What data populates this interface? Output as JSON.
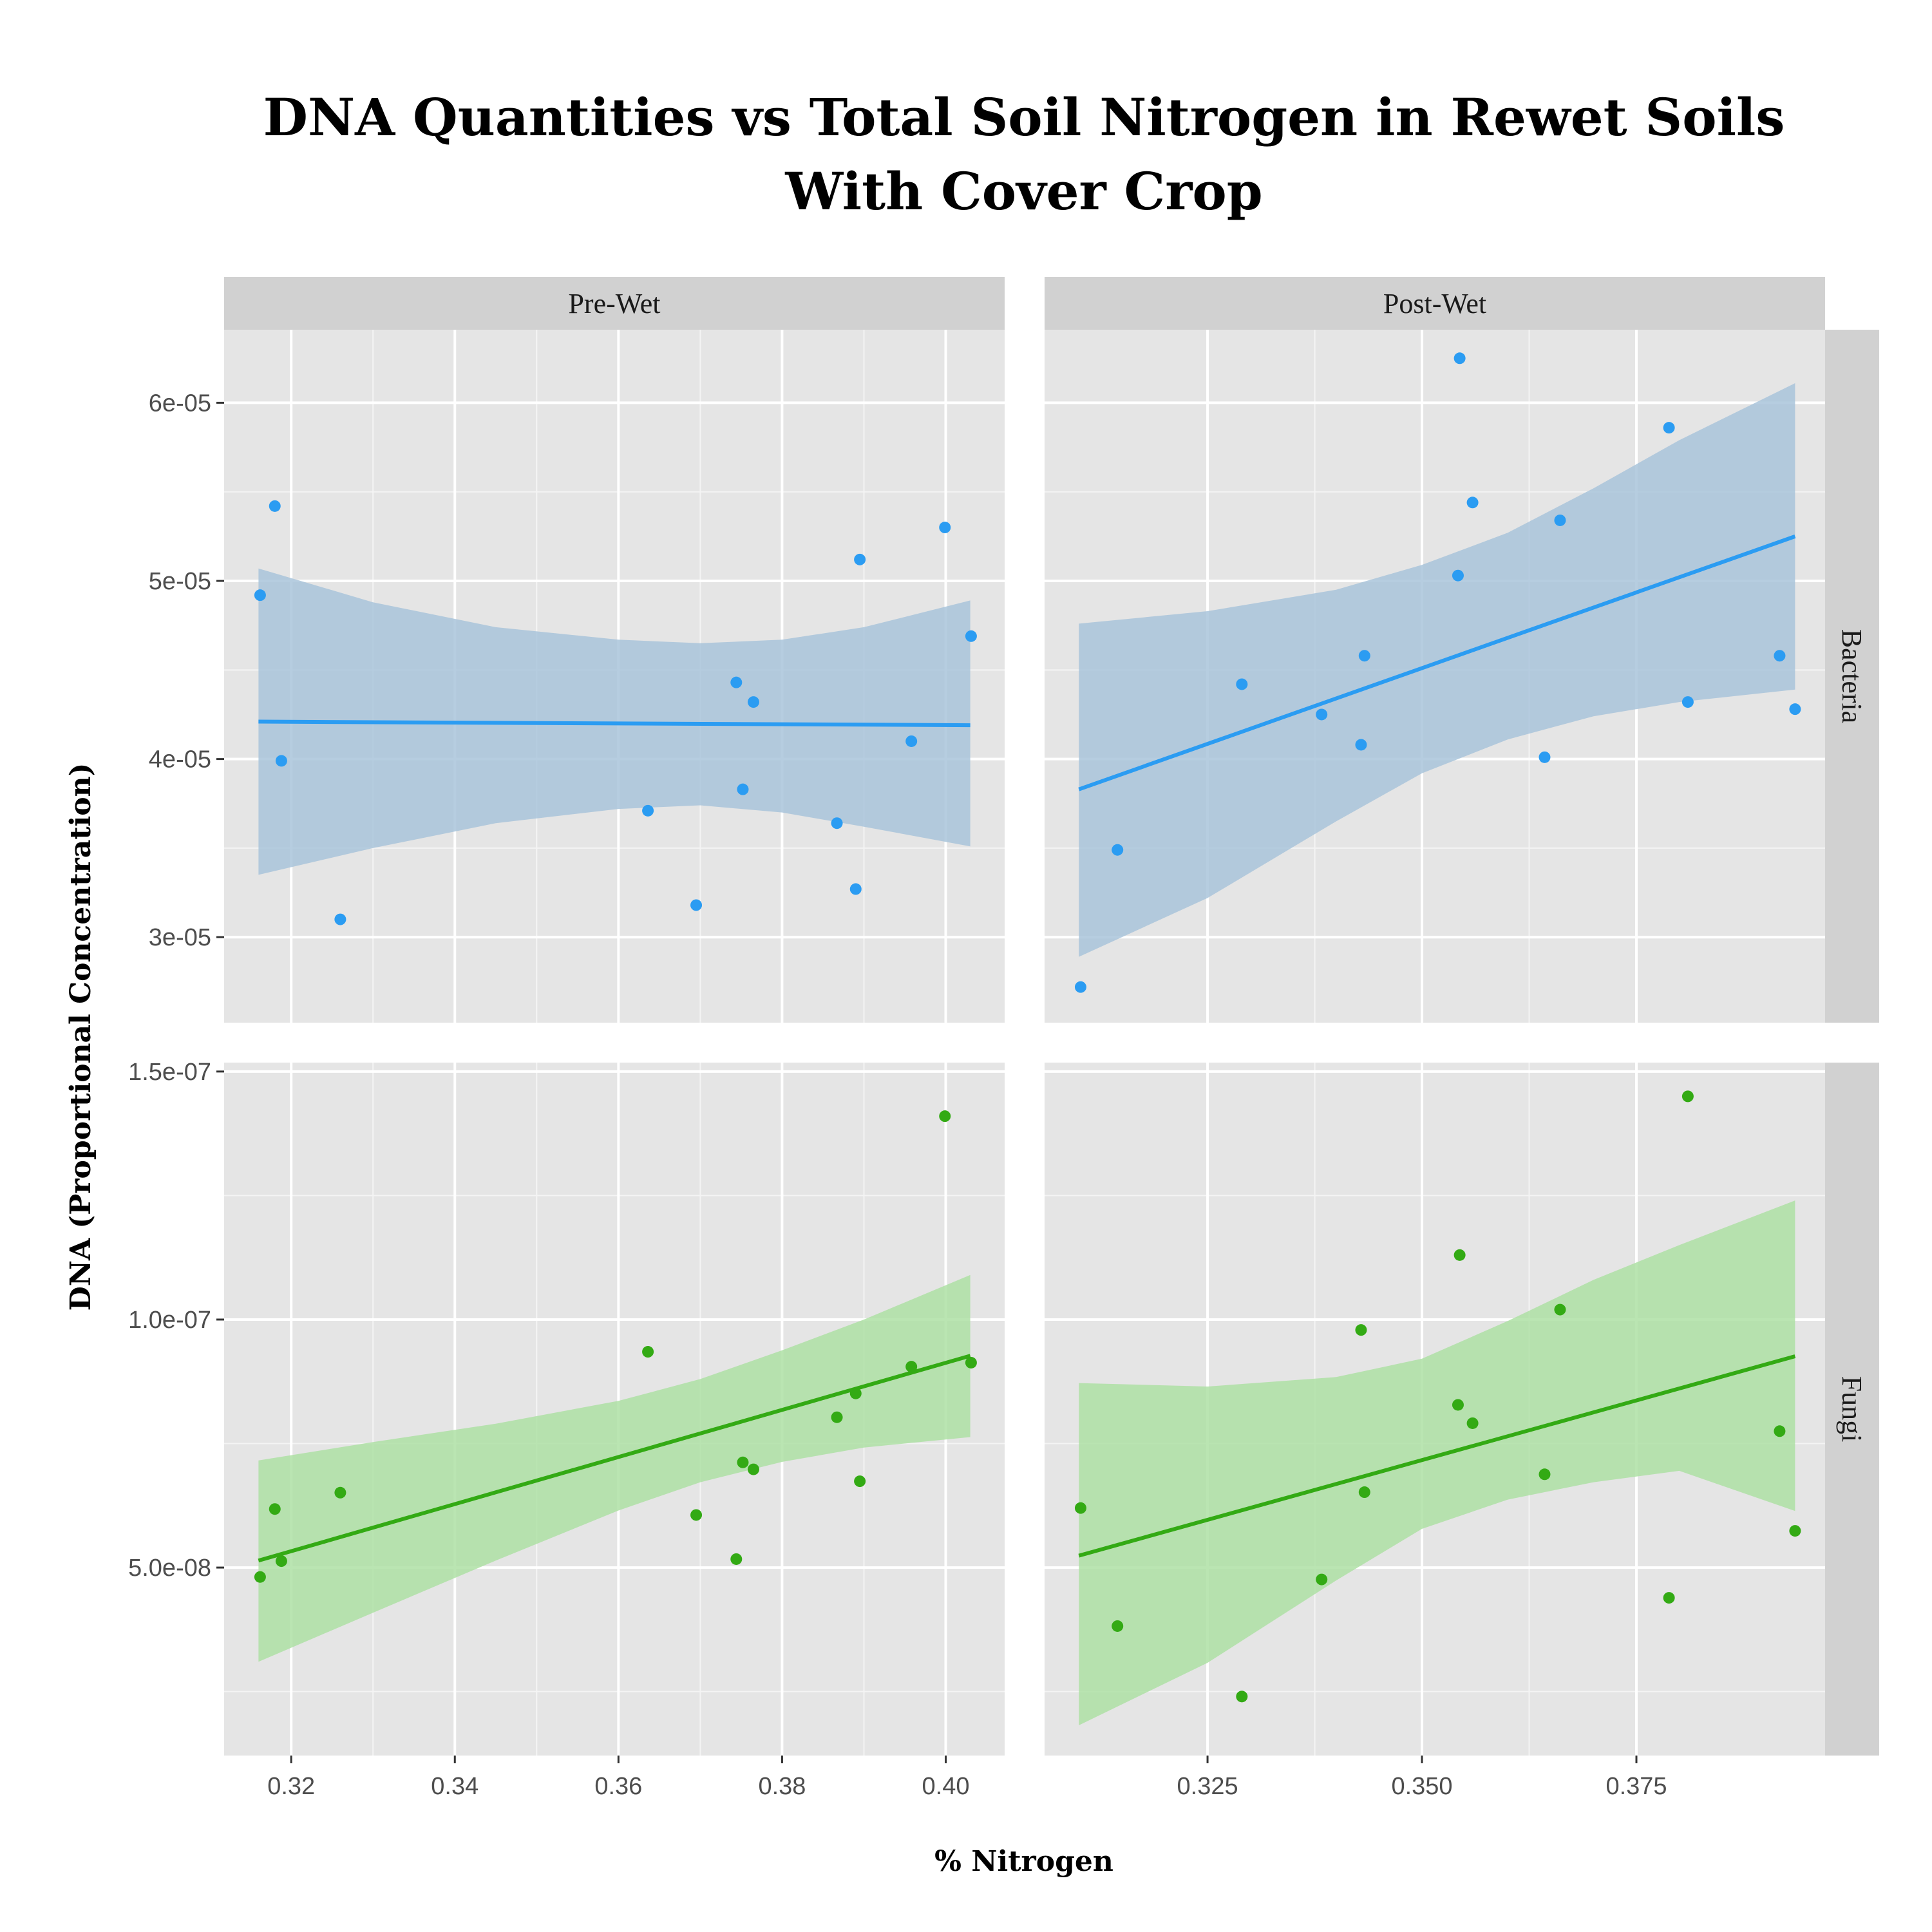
{
  "chart_data": {
    "type": "scatter",
    "title_lines": [
      "DNA Quantities vs Total Soil Nitrogen in Rewet Soils",
      "With Cover Crop"
    ],
    "xlabel": "% Nitrogen",
    "ylabel": "DNA (Proportional Concentration)",
    "columns": [
      {
        "label": "Pre-Wet",
        "xlim": [
          0.3118,
          0.4072
        ],
        "ticks": [
          0.32,
          0.34,
          0.36,
          0.38,
          0.4
        ],
        "tick_labels": [
          "0.32",
          "0.34",
          "0.36",
          "0.38",
          "0.40"
        ]
      },
      {
        "label": "Post-Wet",
        "xlim": [
          0.306,
          0.397
        ],
        "ticks": [
          0.325,
          0.35,
          0.375
        ],
        "tick_labels": [
          "0.325",
          "0.350",
          "0.375"
        ]
      }
    ],
    "rows": [
      {
        "label": "Bacteria",
        "color": "#2b9cf2",
        "band_color": "#a9c4da",
        "ylim": [
          2.52e-05,
          6.41e-05
        ],
        "ticks": [
          3e-05,
          4e-05,
          5e-05,
          6e-05
        ],
        "tick_labels": [
          "3e-05",
          "4e-05",
          "5e-05",
          "6e-05"
        ]
      },
      {
        "label": "Fungi",
        "color": "#33aa14",
        "band_color": "#aee0a4",
        "ylim": [
          1.21e-08,
          1.518e-07
        ],
        "ticks": [
          5e-08,
          1e-07,
          1.5e-07
        ],
        "tick_labels": [
          "5.0e-08",
          "1.0e-07",
          "1.5e-07"
        ]
      }
    ],
    "panels": [
      {
        "column": "Pre-Wet",
        "row": "Bacteria",
        "points": [
          [
            0.3162,
            4.92e-05
          ],
          [
            0.318,
            5.42e-05
          ],
          [
            0.3188,
            3.99e-05
          ],
          [
            0.326,
            3.1e-05
          ],
          [
            0.3636,
            3.71e-05
          ],
          [
            0.3695,
            3.18e-05
          ],
          [
            0.3744,
            4.43e-05
          ],
          [
            0.3752,
            3.83e-05
          ],
          [
            0.3765,
            4.32e-05
          ],
          [
            0.3867,
            3.64e-05
          ],
          [
            0.389,
            3.27e-05
          ],
          [
            0.3895,
            5.12e-05
          ],
          [
            0.3958,
            4.1e-05
          ],
          [
            0.3999,
            5.3e-05
          ],
          [
            0.4031,
            4.69e-05
          ]
        ],
        "fit": [
          [
            0.316,
            4.21e-05
          ],
          [
            0.403,
            4.19e-05
          ]
        ],
        "band": [
          [
            0.316,
            3.35e-05,
            5.07e-05
          ],
          [
            0.33,
            3.5e-05,
            4.88e-05
          ],
          [
            0.345,
            3.64e-05,
            4.74e-05
          ],
          [
            0.36,
            3.72e-05,
            4.67e-05
          ],
          [
            0.37,
            3.74e-05,
            4.65e-05
          ],
          [
            0.38,
            3.7e-05,
            4.67e-05
          ],
          [
            0.39,
            3.62e-05,
            4.74e-05
          ],
          [
            0.403,
            3.51e-05,
            4.89e-05
          ]
        ]
      },
      {
        "column": "Post-Wet",
        "row": "Bacteria",
        "points": [
          [
            0.3102,
            2.72e-05
          ],
          [
            0.3145,
            3.49e-05
          ],
          [
            0.329,
            4.42e-05
          ],
          [
            0.3383,
            4.25e-05
          ],
          [
            0.3429,
            4.08e-05
          ],
          [
            0.3433,
            4.58e-05
          ],
          [
            0.3542,
            5.03e-05
          ],
          [
            0.3544,
            6.25e-05
          ],
          [
            0.3559,
            5.44e-05
          ],
          [
            0.3643,
            4.01e-05
          ],
          [
            0.3661,
            5.34e-05
          ],
          [
            0.3788,
            5.86e-05
          ],
          [
            0.381,
            4.32e-05
          ],
          [
            0.3917,
            4.58e-05
          ],
          [
            0.3935,
            4.28e-05
          ]
        ],
        "fit": [
          [
            0.31,
            3.83e-05
          ],
          [
            0.3935,
            5.25e-05
          ]
        ],
        "band": [
          [
            0.31,
            2.89e-05,
            4.76e-05
          ],
          [
            0.325,
            3.22e-05,
            4.83e-05
          ],
          [
            0.34,
            3.65e-05,
            4.95e-05
          ],
          [
            0.35,
            3.92e-05,
            5.09e-05
          ],
          [
            0.36,
            4.11e-05,
            5.27e-05
          ],
          [
            0.37,
            4.24e-05,
            5.52e-05
          ],
          [
            0.38,
            4.32e-05,
            5.79e-05
          ],
          [
            0.3935,
            4.39e-05,
            6.11e-05
          ]
        ]
      },
      {
        "column": "Pre-Wet",
        "row": "Fungi",
        "points": [
          [
            0.3162,
            4.81e-08
          ],
          [
            0.318,
            6.18e-08
          ],
          [
            0.3188,
            5.13e-08
          ],
          [
            0.326,
            6.51e-08
          ],
          [
            0.3636,
            9.35e-08
          ],
          [
            0.3695,
            6.06e-08
          ],
          [
            0.3744,
            5.17e-08
          ],
          [
            0.3752,
            7.12e-08
          ],
          [
            0.3765,
            6.98e-08
          ],
          [
            0.3867,
            8.03e-08
          ],
          [
            0.389,
            8.51e-08
          ],
          [
            0.3895,
            6.74e-08
          ],
          [
            0.3958,
            9.05e-08
          ],
          [
            0.3999,
            1.41e-07
          ],
          [
            0.4031,
            9.13e-08
          ]
        ],
        "fit": [
          [
            0.316,
            5.14e-08
          ],
          [
            0.403,
            9.27e-08
          ]
        ],
        "band": [
          [
            0.316,
            3.1e-08,
            7.16e-08
          ],
          [
            0.33,
            4.09e-08,
            7.53e-08
          ],
          [
            0.345,
            5.14e-08,
            7.9e-08
          ],
          [
            0.36,
            6.15e-08,
            8.36e-08
          ],
          [
            0.37,
            6.72e-08,
            8.8e-08
          ],
          [
            0.38,
            7.13e-08,
            9.38e-08
          ],
          [
            0.39,
            7.42e-08,
            1e-07
          ],
          [
            0.403,
            7.63e-08,
            1.09e-07
          ]
        ]
      },
      {
        "column": "Post-Wet",
        "row": "Fungi",
        "points": [
          [
            0.3102,
            6.2e-08
          ],
          [
            0.3145,
            3.82e-08
          ],
          [
            0.329,
            2.4e-08
          ],
          [
            0.3383,
            4.76e-08
          ],
          [
            0.3429,
            9.79e-08
          ],
          [
            0.3433,
            6.52e-08
          ],
          [
            0.3542,
            8.28e-08
          ],
          [
            0.3544,
            1.13e-07
          ],
          [
            0.3559,
            7.91e-08
          ],
          [
            0.3643,
            6.88e-08
          ],
          [
            0.3661,
            1.02e-07
          ],
          [
            0.3788,
            4.39e-08
          ],
          [
            0.381,
            1.45e-07
          ],
          [
            0.3917,
            7.75e-08
          ],
          [
            0.3935,
            5.74e-08
          ]
        ],
        "fit": [
          [
            0.31,
            5.24e-08
          ],
          [
            0.3935,
            9.26e-08
          ]
        ],
        "band": [
          [
            0.31,
            1.82e-08,
            8.72e-08
          ],
          [
            0.325,
            3.08e-08,
            8.65e-08
          ],
          [
            0.34,
            4.74e-08,
            8.84e-08
          ],
          [
            0.35,
            5.78e-08,
            9.21e-08
          ],
          [
            0.36,
            6.37e-08,
            9.97e-08
          ],
          [
            0.37,
            6.72e-08,
            1.08e-07
          ],
          [
            0.38,
            6.95e-08,
            1.15e-07
          ],
          [
            0.3935,
            6.14e-08,
            1.24e-07
          ]
        ]
      }
    ],
    "grid": true,
    "legend": "none"
  }
}
